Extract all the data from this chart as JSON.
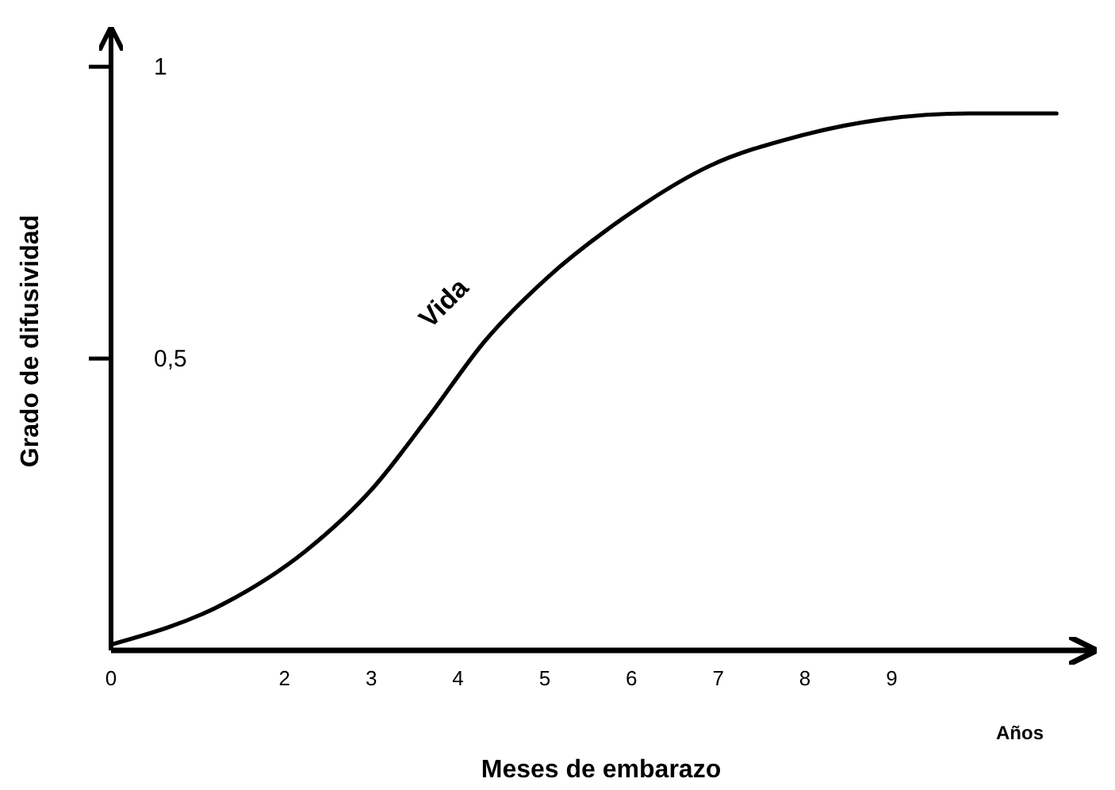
{
  "chart_data": {
    "type": "line",
    "xlabel": "Meses de embarazo",
    "ylabel": "Grado de difusividad",
    "x": [
      0,
      1.3,
      2.24,
      3.03,
      3.66,
      4.31,
      5.04,
      5.9,
      6.9,
      7.9,
      8.9,
      9.9,
      10.9
    ],
    "series": [
      {
        "color": "#000000",
        "values": [
          0.01,
          0.08,
          0.17,
          0.28,
          0.4,
          0.53,
          0.64,
          0.74,
          0.83,
          0.88,
          0.91,
          0.92,
          0.92
        ]
      }
    ],
    "xlim": [
      0,
      11.3
    ],
    "ylim": [
      0,
      1.06
    ],
    "xticks": [
      0,
      2,
      3,
      4,
      5,
      6,
      7,
      8,
      9
    ],
    "yticks": [
      {
        "value": 0.5,
        "label": "0,5"
      },
      1
    ],
    "annotations": [
      "Vida",
      "Años"
    ],
    "grid": false,
    "marker": "none",
    "line_style": "solid"
  }
}
